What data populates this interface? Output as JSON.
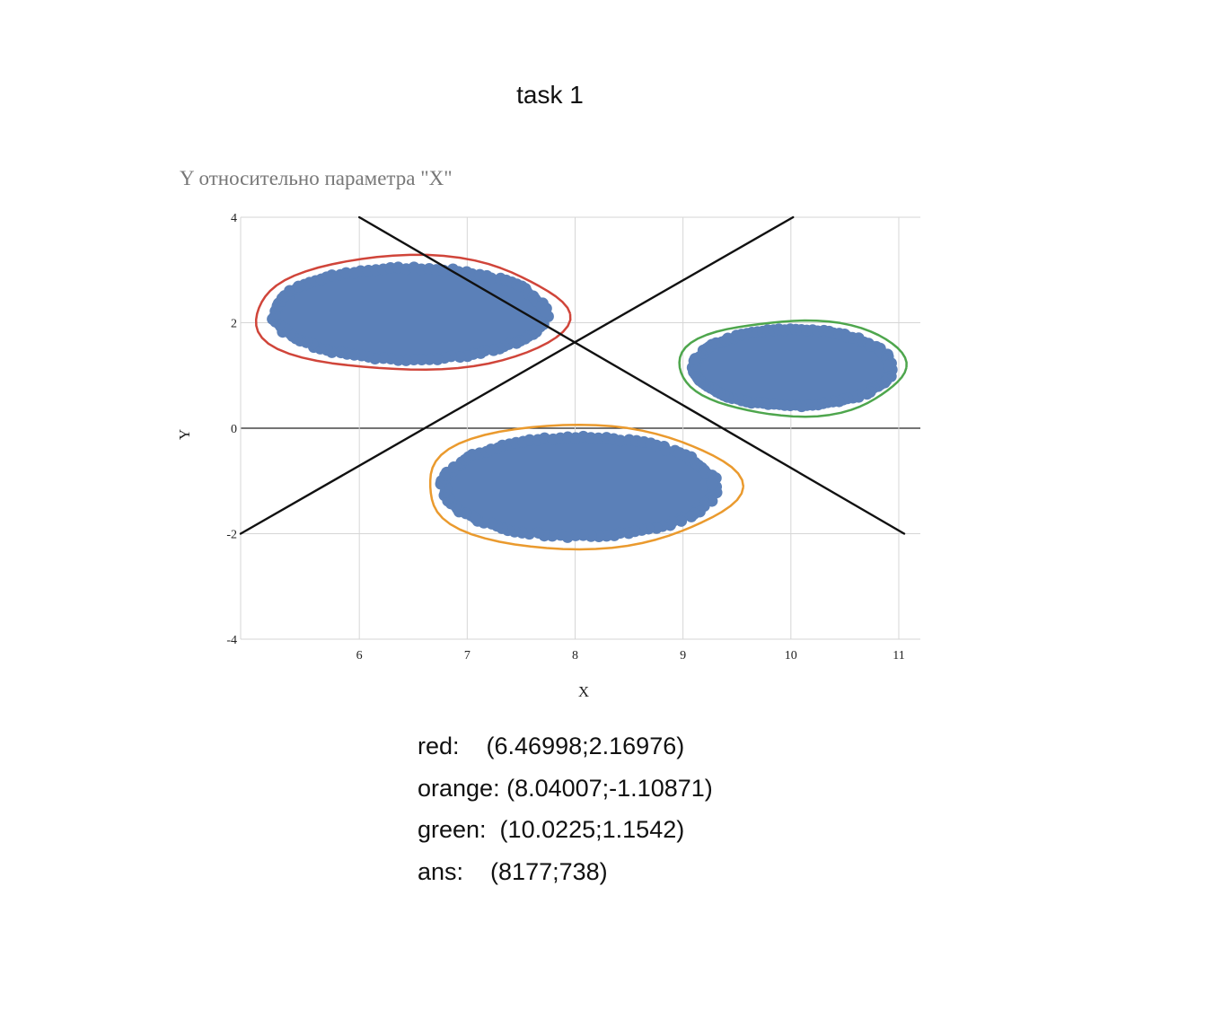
{
  "page": {
    "title": "task 1"
  },
  "chart_data": {
    "type": "scatter",
    "title": "Y относительно параметра \"X\"",
    "xlabel": "X",
    "ylabel": "Y",
    "xlim": [
      4.9,
      11.2
    ],
    "ylim": [
      -4,
      4
    ],
    "x_ticks": [
      6,
      7,
      8,
      9,
      10,
      11
    ],
    "y_ticks": [
      4,
      2,
      0,
      -2,
      -4
    ],
    "grid": true,
    "point_color": "#5b80b8",
    "clusters": [
      {
        "name": "red",
        "center": [
          6.47,
          2.17
        ],
        "rx": 1.45,
        "ry": 1.38,
        "outline_color": "#d0453a"
      },
      {
        "name": "orange",
        "center": [
          8.04,
          -1.11
        ],
        "rx": 1.45,
        "ry": 1.5,
        "outline_color": "#ea9a2e"
      },
      {
        "name": "green",
        "center": [
          10.02,
          1.15
        ],
        "rx": 1.05,
        "ry": 1.15,
        "outline_color": "#4ea64d"
      }
    ],
    "lines": [
      {
        "from": [
          6,
          4
        ],
        "to": [
          11.05,
          -2
        ]
      },
      {
        "from": [
          4.9,
          -2
        ],
        "to": [
          10.02,
          4
        ]
      }
    ]
  },
  "results": [
    "red:    (6.46998;2.16976)",
    "orange: (8.04007;-1.10871)",
    "green:  (10.0225;1.1542)",
    "ans:    (8177;738)"
  ]
}
